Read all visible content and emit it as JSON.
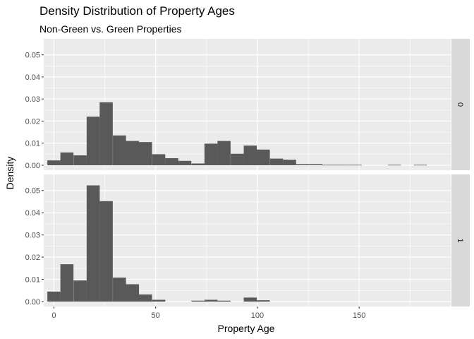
{
  "chart_data": {
    "type": "bar",
    "title": "Density Distribution of Property Ages",
    "subtitle": "Non-Green vs. Green Properties",
    "xlabel": "Property Age",
    "ylabel": "Density",
    "xlim": [
      -5,
      195
    ],
    "ylim": [
      0,
      0.055
    ],
    "x_ticks": [
      0,
      50,
      100,
      150
    ],
    "y_ticks": [
      0.0,
      0.01,
      0.02,
      0.03,
      0.04,
      0.05
    ],
    "y_tick_labels": [
      "0.00",
      "0.01",
      "0.02",
      "0.03",
      "0.04",
      "0.05"
    ],
    "bin_width": 6.43,
    "grid": true,
    "background": "#EBEBEB",
    "bar_color": "#595959",
    "strip_color": "#D9D9D9",
    "facets": [
      {
        "label": "0",
        "bins_x": [
          0,
          6.4,
          12.9,
          19.3,
          25.7,
          32.2,
          38.6,
          45.0,
          51.5,
          57.9,
          64.3,
          70.8,
          77.2,
          83.6,
          90.1,
          96.5,
          102.9,
          109.4,
          115.8,
          122.2,
          128.7,
          135.1,
          141.5,
          148.0,
          154.4,
          160.8,
          167.3,
          173.7,
          180.1,
          186.6
        ],
        "values": [
          0.0022,
          0.0058,
          0.0045,
          0.022,
          0.0285,
          0.0135,
          0.011,
          0.0105,
          0.005,
          0.0032,
          0.002,
          0.0008,
          0.0098,
          0.011,
          0.0052,
          0.0089,
          0.0071,
          0.003,
          0.0025,
          0.0005,
          0.0005,
          0.0002,
          0.0002,
          0.0002,
          0.0,
          0.0,
          0.0002,
          0.0,
          0.0002,
          0.0
        ]
      },
      {
        "label": "1",
        "bins_x": [
          0,
          6.4,
          12.9,
          19.3,
          25.7,
          32.2,
          38.6,
          45.0,
          51.5,
          57.9,
          64.3,
          70.8,
          77.2,
          83.6,
          90.1,
          96.5,
          102.9
        ],
        "values": [
          0.0045,
          0.0168,
          0.0095,
          0.0523,
          0.0452,
          0.0108,
          0.0078,
          0.0032,
          0.0008,
          0.0,
          0.0,
          0.0004,
          0.0008,
          0.0004,
          0.0,
          0.0018,
          0.0006
        ]
      }
    ]
  }
}
